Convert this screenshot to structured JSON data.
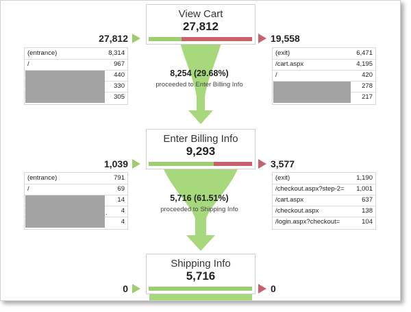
{
  "colors": {
    "green": "#9ccd6f",
    "red": "#c8616a",
    "funnel": "#a7d97c"
  },
  "steps": [
    {
      "title": "View Cart",
      "value": "27,812",
      "entries": "27,812",
      "exits": "19,558",
      "proceeded_pct": "8,254 (29.68%)",
      "proceeded_label": "proceeded to Enter Billing Info",
      "progress_green_fraction": 0.32,
      "entrance_rows": [
        {
          "label": "(entrance)",
          "value": "8,314"
        },
        {
          "label": "/",
          "value": "967"
        },
        {
          "label": "",
          "value": "440"
        },
        {
          "label": "",
          "value": "330"
        },
        {
          "label": "",
          "value": "305"
        }
      ],
      "exit_rows": [
        {
          "label": "(exit)",
          "value": "6,471"
        },
        {
          "label": "/cart.aspx",
          "value": "4,195"
        },
        {
          "label": "/",
          "value": "420"
        },
        {
          "label": "",
          "value": "278"
        },
        {
          "label": "",
          "value": "217"
        }
      ]
    },
    {
      "title": "Enter Billing Info",
      "value": "9,293",
      "entries": "1,039",
      "exits": "3,577",
      "proceeded_pct": "5,716 (61.51%)",
      "proceeded_label": "proceeded to Shipping Info",
      "progress_green_fraction": 0.62,
      "entrance_rows": [
        {
          "label": "(entrance)",
          "value": "791"
        },
        {
          "label": "/",
          "value": "69"
        },
        {
          "label": "",
          "value": "14"
        },
        {
          "label": "",
          "value": "4"
        },
        {
          "label": "",
          "value": "4"
        }
      ],
      "exit_rows": [
        {
          "label": "(exit)",
          "value": "1,190"
        },
        {
          "label": "/checkout.aspx?step-2=",
          "value": "1,001"
        },
        {
          "label": "/cart.aspx",
          "value": "637"
        },
        {
          "label": "/checkout.aspx",
          "value": "138"
        },
        {
          "label": "/login.aspx?checkout=",
          "value": "104"
        }
      ]
    },
    {
      "title": "Shipping Info",
      "value": "5,716",
      "entries": "0",
      "exits": "0",
      "progress_green_fraction": 1.0
    }
  ]
}
